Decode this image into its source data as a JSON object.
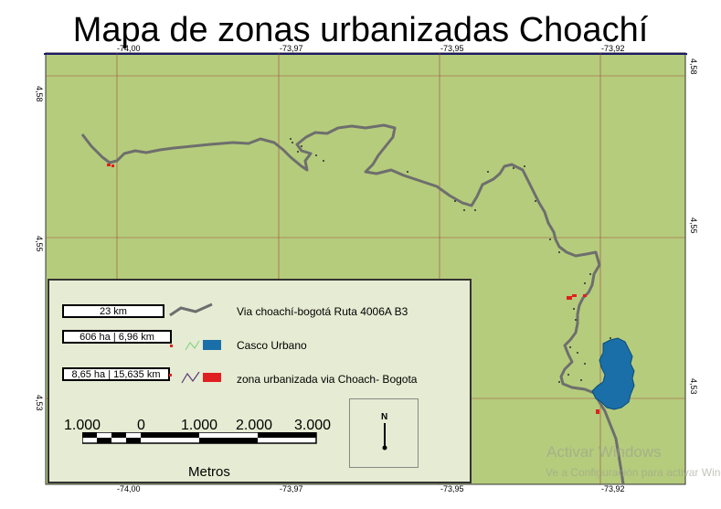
{
  "title": "Mapa de zonas urbanizadas Choachí",
  "map": {
    "background_color": "#b5cc7c",
    "grid_color": "#a04a3a",
    "road_color": "#6e6e6e",
    "urban_color": "#1a6fa8",
    "urbanized_color": "#e02020",
    "top_ticks": [
      "-74,00",
      "-73,97",
      "-73,95",
      "-73,92"
    ],
    "bottom_ticks": [
      "-74,00",
      "-73,97",
      "-73,95",
      "-73,92"
    ],
    "left_ticks": [
      "4,58",
      "4,55",
      "4,53"
    ],
    "right_ticks": [
      "4,58",
      "4,55",
      "4,53"
    ]
  },
  "legend": {
    "road_stat": "23 km",
    "road_label": "Via choachí-bogotá Ruta 4006A B3",
    "urban_stat": "606 ha  |   6,96 km",
    "urban_label": "Casco Urbano",
    "urbanized_stat": "8,65 ha | 15,635 km",
    "urbanized_label": "zona urbanizada via Choach- Bogota"
  },
  "scalebar": {
    "labels": [
      "1.000",
      "0",
      "1.000",
      "2.000",
      "3.000"
    ],
    "unit": "Metros"
  },
  "north_arrow": {
    "label": "N"
  },
  "watermark": {
    "line1": "Activar Windows",
    "line2": "Ve a Configuración para activar Windows"
  }
}
